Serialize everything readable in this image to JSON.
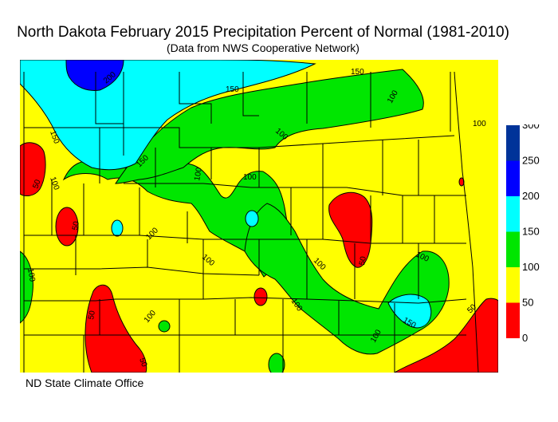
{
  "header": {
    "title": "North Dakota February 2015 Precipitation Percent of Normal (1981-2010)",
    "subtitle": "(Data from NWS Cooperative Network)"
  },
  "footer": {
    "credit": "ND State Climate Office"
  },
  "legend": {
    "bins": [
      {
        "label": "0",
        "color": "#ff0000"
      },
      {
        "label": "50",
        "color": "#ffff00"
      },
      {
        "label": "100",
        "color": "#00e600"
      },
      {
        "label": "150",
        "color": "#00ffff"
      },
      {
        "label": "200",
        "color": "#0000ff"
      },
      {
        "label": "250",
        "color": "#003399"
      },
      {
        "label": "300",
        "color": ""
      }
    ]
  },
  "map": {
    "background_color": "#ffff00",
    "contour_labels": {
      "l150a": "150",
      "l150b": "150",
      "l150c": "150",
      "l150d": "150",
      "l150e": "150",
      "l200": "200",
      "l100a": "100",
      "l100b": "100",
      "l100c": "100",
      "l100d": "100",
      "l100e": "100",
      "l100f": "100",
      "l100g": "100",
      "l100h": "100",
      "l100i": "100",
      "l100j": "100",
      "l100k": "100",
      "l100l": "100",
      "l100m": "100",
      "l100n": "100",
      "l50a": "50",
      "l50b": "50",
      "l50c": "50",
      "l50d": "50",
      "l50e": "50",
      "l50f": "50"
    }
  }
}
